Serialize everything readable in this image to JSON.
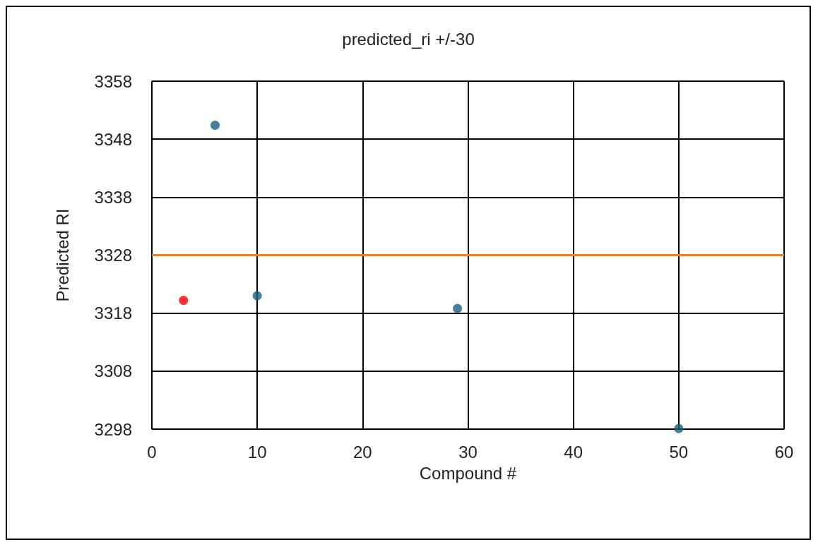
{
  "chart_data": {
    "type": "scatter",
    "title": "predicted_ri +/-30",
    "xlabel": "Compound #",
    "ylabel": "Predicted RI",
    "series": [
      {
        "color": "#1a5f7f",
        "x": [
          6,
          10,
          29,
          50
        ],
        "values": [
          3350.4,
          3321,
          3318.8,
          3298.1
        ]
      },
      {
        "color": "#ff0000",
        "x": [
          3
        ],
        "values": [
          3320.2
        ]
      }
    ],
    "xlim": [
      0,
      60
    ],
    "xticks": [
      0,
      10,
      20,
      30,
      40,
      50,
      60
    ],
    "ylim": [
      3298,
      3358
    ],
    "yticks": [
      3298,
      3308,
      3318,
      3328,
      3338,
      3348,
      3358
    ],
    "ref_lines": [
      {
        "axis": "y",
        "value": 3328,
        "color": "#ed7d31",
        "line_style": "solid"
      }
    ],
    "grid": true,
    "marker": "circle"
  }
}
